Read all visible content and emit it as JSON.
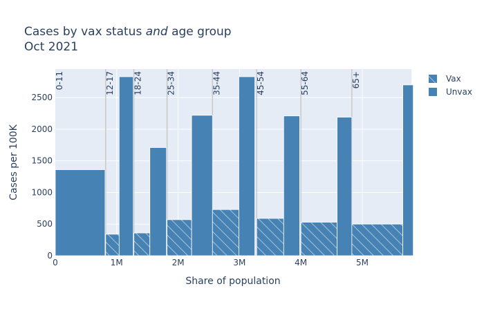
{
  "chart_data": {
    "type": "bar",
    "title_line1_pre": "Cases by vax status ",
    "title_line1_em": "and",
    "title_line1_post": " age group",
    "title_line2": "Oct 2021",
    "xlabel": "Share of population",
    "ylabel": "Cases per 100K",
    "xlim": [
      0,
      5800000
    ],
    "ylim": [
      0,
      2950
    ],
    "x_ticks": [
      {
        "value": 0,
        "label": "0"
      },
      {
        "value": 1000000,
        "label": "1M"
      },
      {
        "value": 2000000,
        "label": "2M"
      },
      {
        "value": 3000000,
        "label": "3M"
      },
      {
        "value": 4000000,
        "label": "4M"
      },
      {
        "value": 5000000,
        "label": "5M"
      }
    ],
    "y_ticks": [
      {
        "value": 0,
        "label": "0"
      },
      {
        "value": 500,
        "label": "500"
      },
      {
        "value": 1000,
        "label": "1000"
      },
      {
        "value": 1500,
        "label": "1500"
      },
      {
        "value": 2000,
        "label": "2000"
      },
      {
        "value": 2500,
        "label": "2500"
      }
    ],
    "grid": true,
    "legend_position": "top-right",
    "colors": {
      "vax": "#4682b4",
      "unvax": "#4682b4",
      "plot_bg": "#e5ecf6",
      "divider": "#c8c8c8"
    },
    "series": [
      {
        "name": "Vax",
        "pattern": "hatched"
      },
      {
        "name": "Unvax",
        "pattern": "solid"
      }
    ],
    "groups": [
      {
        "label": "0-11",
        "start": 0,
        "vax_width": 0,
        "vax": 0,
        "unvax_width": 810000,
        "unvax": 1360
      },
      {
        "label": "12-17",
        "start": 820000,
        "vax_width": 220000,
        "vax": 340,
        "unvax_width": 230000,
        "unvax": 2830
      },
      {
        "label": "18-24",
        "start": 1280000,
        "vax_width": 260000,
        "vax": 360,
        "unvax_width": 270000,
        "unvax": 1710
      },
      {
        "label": "25-34",
        "start": 1820000,
        "vax_width": 400000,
        "vax": 570,
        "unvax_width": 340000,
        "unvax": 2220
      },
      {
        "label": "35-44",
        "start": 2560000,
        "vax_width": 430000,
        "vax": 730,
        "unvax_width": 260000,
        "unvax": 2830
      },
      {
        "label": "45-54",
        "start": 3280000,
        "vax_width": 440000,
        "vax": 590,
        "unvax_width": 260000,
        "unvax": 2210
      },
      {
        "label": "55-64",
        "start": 4000000,
        "vax_width": 590000,
        "vax": 530,
        "unvax_width": 240000,
        "unvax": 2190
      },
      {
        "label": "65+",
        "start": 4830000,
        "vax_width": 830000,
        "vax": 500,
        "unvax_width": 170000,
        "unvax": 2700
      }
    ]
  }
}
